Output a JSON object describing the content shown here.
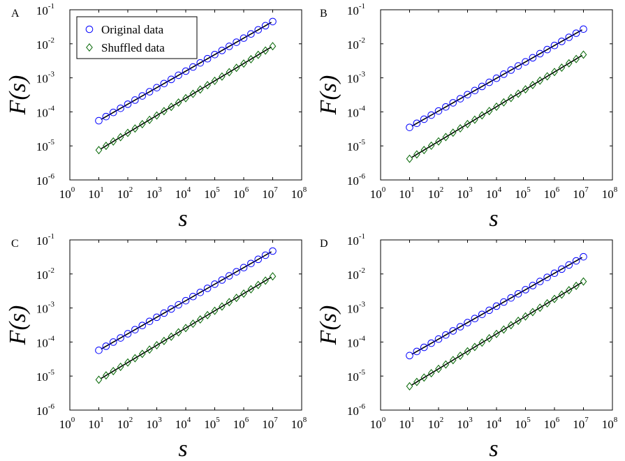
{
  "legend": {
    "original_label": "Original data",
    "shuffled_label": "Shuffled data",
    "original_color": "#0000ff",
    "shuffled_color": "#006400",
    "fit_color": "#000000",
    "original_marker": "circle",
    "shuffled_marker": "diamond"
  },
  "chart_data": [
    {
      "panel": "A",
      "type": "scatter",
      "xlabel": "s",
      "ylabel": "F(s)",
      "xscale": "log",
      "yscale": "log",
      "xlim": [
        1,
        100000000
      ],
      "ylim": [
        1e-06,
        0.1
      ],
      "xticks": [
        1,
        10,
        100,
        1000,
        10000,
        100000,
        1000000,
        10000000,
        100000000
      ],
      "yticks": [
        1e-06,
        1e-05,
        0.0001,
        0.001,
        0.01,
        0.1
      ],
      "legend_position": "top-left",
      "show_legend": true,
      "series": [
        {
          "name": "Original data",
          "marker": "circle",
          "x_range": [
            10,
            10000000
          ],
          "y_range": [
            5.5e-05,
            0.045
          ]
        },
        {
          "name": "Shuffled data",
          "marker": "diamond",
          "x_range": [
            10,
            10000000
          ],
          "y_range": [
            7.5e-06,
            0.0085
          ]
        }
      ]
    },
    {
      "panel": "B",
      "type": "scatter",
      "xlabel": "s",
      "ylabel": "F(s)",
      "xscale": "log",
      "yscale": "log",
      "xlim": [
        1,
        100000000
      ],
      "ylim": [
        1e-06,
        0.1
      ],
      "xticks": [
        1,
        10,
        100,
        1000,
        10000,
        100000,
        1000000,
        10000000,
        100000000
      ],
      "yticks": [
        1e-06,
        1e-05,
        0.0001,
        0.001,
        0.01,
        0.1
      ],
      "show_legend": false,
      "series": [
        {
          "name": "Original data",
          "marker": "circle",
          "x_range": [
            10,
            10000000
          ],
          "y_range": [
            3.5e-05,
            0.027
          ]
        },
        {
          "name": "Shuffled data",
          "marker": "diamond",
          "x_range": [
            10,
            10000000
          ],
          "y_range": [
            4.2e-06,
            0.0048
          ]
        }
      ]
    },
    {
      "panel": "C",
      "type": "scatter",
      "xlabel": "s",
      "ylabel": "F(s)",
      "xscale": "log",
      "yscale": "log",
      "xlim": [
        1,
        100000000
      ],
      "ylim": [
        1e-06,
        0.1
      ],
      "xticks": [
        1,
        10,
        100,
        1000,
        10000,
        100000,
        1000000,
        10000000,
        100000000
      ],
      "yticks": [
        1e-06,
        1e-05,
        0.0001,
        0.001,
        0.01,
        0.1
      ],
      "show_legend": false,
      "series": [
        {
          "name": "Original data",
          "marker": "circle",
          "x_range": [
            10,
            10000000
          ],
          "y_range": [
            5.7e-05,
            0.047
          ]
        },
        {
          "name": "Shuffled data",
          "marker": "diamond",
          "x_range": [
            10,
            10000000
          ],
          "y_range": [
            7.8e-06,
            0.0085
          ]
        }
      ]
    },
    {
      "panel": "D",
      "type": "scatter",
      "xlabel": "s",
      "ylabel": "F(s)",
      "xscale": "log",
      "yscale": "log",
      "xlim": [
        1,
        100000000
      ],
      "ylim": [
        1e-06,
        0.1
      ],
      "xticks": [
        1,
        10,
        100,
        1000,
        10000,
        100000,
        1000000,
        10000000,
        100000000
      ],
      "yticks": [
        1e-06,
        1e-05,
        0.0001,
        0.001,
        0.01,
        0.1
      ],
      "show_legend": false,
      "series": [
        {
          "name": "Original data",
          "marker": "circle",
          "x_range": [
            10,
            10000000
          ],
          "y_range": [
            4e-05,
            0.032
          ]
        },
        {
          "name": "Shuffled data",
          "marker": "diamond",
          "x_range": [
            10,
            10000000
          ],
          "y_range": [
            5e-06,
            0.006
          ]
        }
      ]
    }
  ]
}
